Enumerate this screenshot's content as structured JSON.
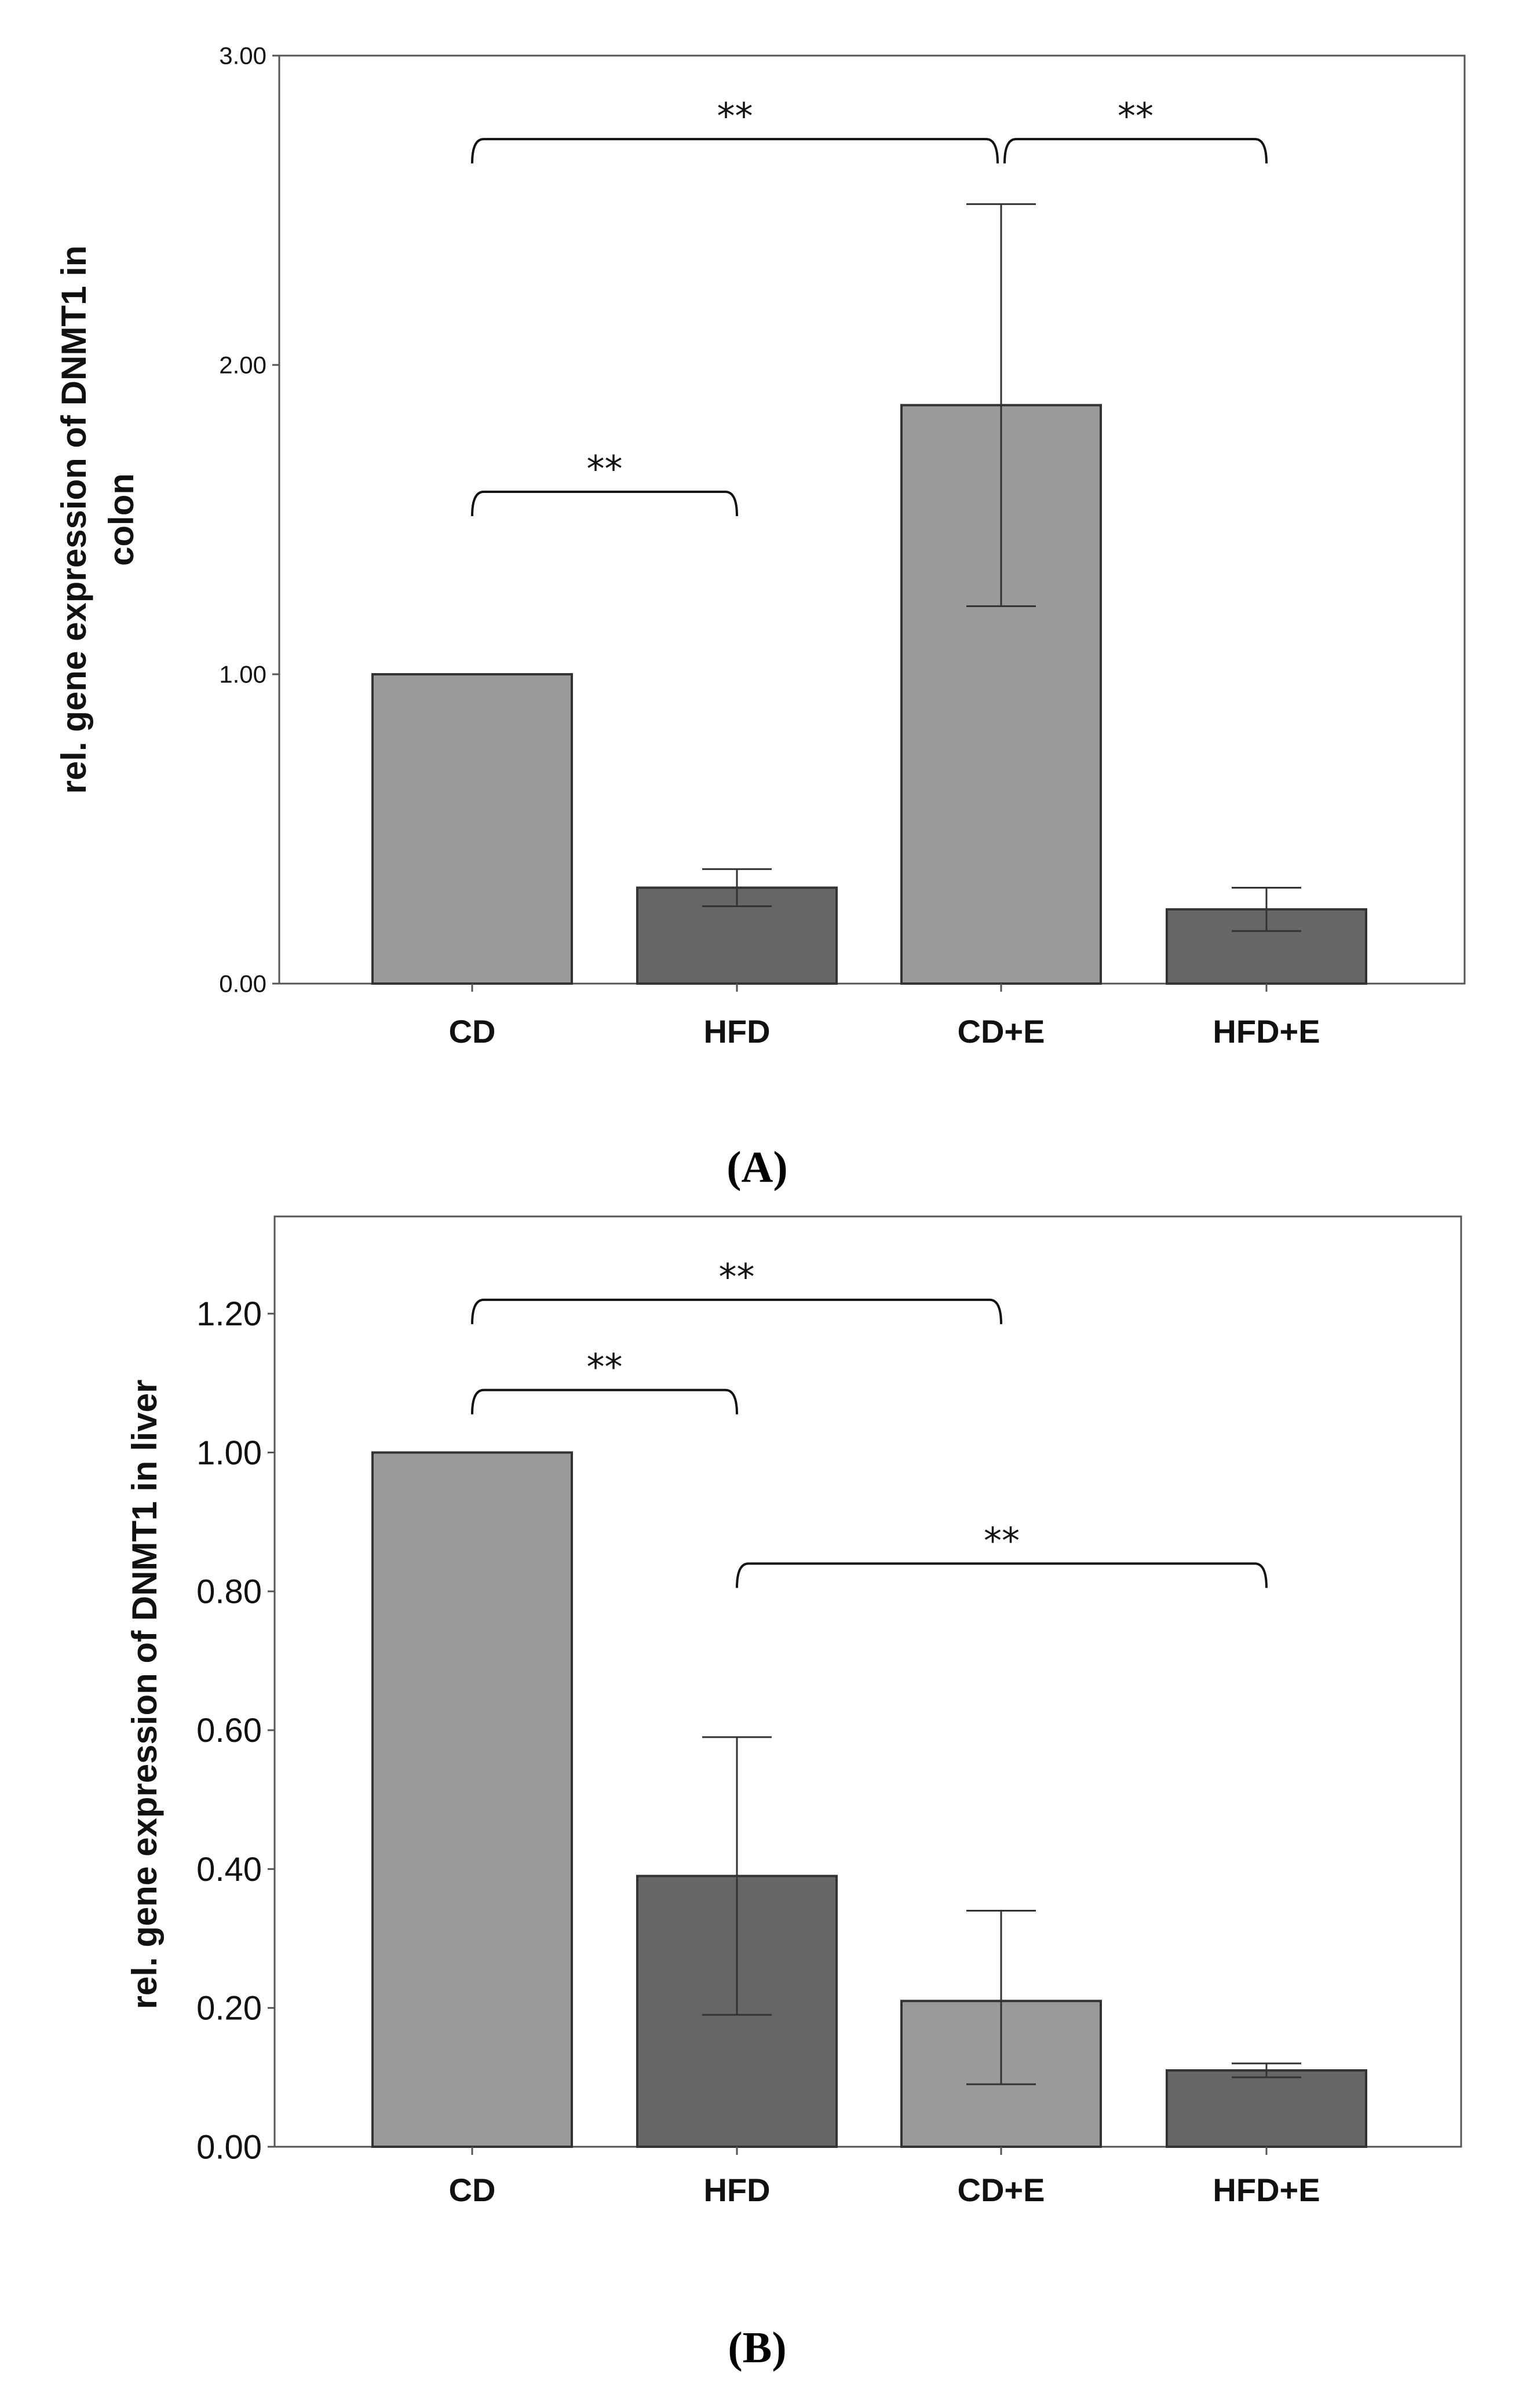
{
  "colors": {
    "cd": "#9a9a9a",
    "hfd": "#676767",
    "axis": "#555555",
    "edge": "#333333",
    "text": "#111111"
  },
  "chart_data": [
    {
      "type": "bar",
      "panel": "A",
      "panel_label": "(A)",
      "ylabel_lines": [
        "rel. gene expression of DNMT1 in",
        "colon"
      ],
      "xlabel": "",
      "categories": [
        "CD",
        "HFD",
        "CD+E",
        "HFD+E"
      ],
      "values": [
        1.0,
        0.31,
        1.87,
        0.24
      ],
      "error_low": [
        1.0,
        0.25,
        1.22,
        0.17
      ],
      "error_high": [
        1.0,
        0.37,
        2.52,
        0.31
      ],
      "fill": [
        "cd",
        "hfd",
        "cd",
        "hfd"
      ],
      "ylim": [
        0,
        3.0
      ],
      "yticks": [
        0,
        1,
        2,
        3
      ],
      "ytick_labels": [
        "0.00",
        "1.00",
        "2.00",
        "3.00"
      ],
      "significance": [
        {
          "from": 0,
          "to": 1,
          "y": 1.59,
          "label": "**"
        },
        {
          "from": 0,
          "to": 2,
          "y": 2.73,
          "label": "**"
        },
        {
          "from": 2,
          "to": 3,
          "y": 2.73,
          "label": "**"
        }
      ]
    },
    {
      "type": "bar",
      "panel": "B",
      "panel_label": "(B)",
      "ylabel_lines": [
        "rel. gene expression of DNMT1 in liver"
      ],
      "xlabel": "",
      "categories": [
        "CD",
        "HFD",
        "CD+E",
        "HFD+E"
      ],
      "values": [
        1.0,
        0.39,
        0.21,
        0.11
      ],
      "error_low": [
        1.0,
        0.19,
        0.09,
        0.1
      ],
      "error_high": [
        1.0,
        0.59,
        0.34,
        0.12
      ],
      "fill": [
        "cd",
        "hfd",
        "cd",
        "hfd"
      ],
      "ylim": [
        0,
        1.34
      ],
      "yticks": [
        0,
        0.2,
        0.4,
        0.6,
        0.8,
        1.0,
        1.2
      ],
      "ytick_labels": [
        "0.00",
        "0.20",
        "0.40",
        "0.60",
        "0.80",
        "1.00",
        "1.20"
      ],
      "significance": [
        {
          "from": 0,
          "to": 1,
          "y": 1.09,
          "label": "**"
        },
        {
          "from": 0,
          "to": 2,
          "y": 1.22,
          "label": "**"
        },
        {
          "from": 1,
          "to": 3,
          "y": 0.84,
          "label": "**"
        }
      ]
    }
  ]
}
